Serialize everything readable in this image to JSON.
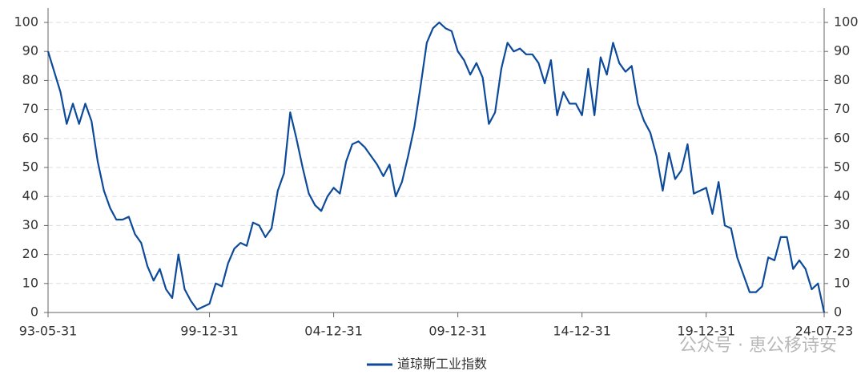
{
  "chart_data": {
    "type": "line",
    "categories": [
      "93-05-31",
      null,
      null,
      null,
      null,
      null,
      null,
      null,
      null,
      null,
      null,
      null,
      null,
      null,
      null,
      null,
      null,
      null,
      null,
      null,
      null,
      null,
      null,
      null,
      null,
      null,
      "99-12-31",
      null,
      null,
      null,
      null,
      null,
      null,
      null,
      null,
      null,
      null,
      null,
      null,
      null,
      null,
      null,
      null,
      null,
      null,
      null,
      "04-12-31",
      null,
      null,
      null,
      null,
      null,
      null,
      null,
      null,
      null,
      null,
      null,
      null,
      null,
      null,
      null,
      null,
      null,
      null,
      null,
      "09-12-31",
      null,
      null,
      null,
      null,
      null,
      null,
      null,
      null,
      null,
      null,
      null,
      null,
      null,
      null,
      null,
      null,
      null,
      null,
      null,
      "14-12-31",
      null,
      null,
      null,
      null,
      null,
      null,
      null,
      null,
      null,
      null,
      null,
      null,
      null,
      null,
      null,
      null,
      null,
      null,
      null,
      "19-12-31",
      null,
      null,
      null,
      null,
      null,
      null,
      null,
      null,
      null,
      null,
      null,
      null,
      null,
      null,
      null,
      null,
      null,
      null,
      "24-07-23"
    ],
    "series": [
      {
        "name": "道琼斯工业指数",
        "color": "#0d4a9a",
        "values": [
          90,
          83,
          76,
          65,
          72,
          65,
          72,
          66,
          52,
          42,
          36,
          32,
          32,
          33,
          27,
          24,
          16,
          11,
          15,
          8,
          5,
          20,
          8,
          4,
          1,
          2,
          3,
          10,
          9,
          17,
          22,
          24,
          23,
          31,
          30,
          26,
          29,
          42,
          48,
          69,
          60,
          50,
          41,
          37,
          35,
          40,
          43,
          41,
          52,
          58,
          59,
          57,
          54,
          51,
          47,
          51,
          40,
          45,
          54,
          64,
          78,
          93,
          98,
          100,
          98,
          97,
          90,
          87,
          82,
          86,
          81,
          65,
          69,
          84,
          93,
          90,
          91,
          89,
          89,
          86,
          79,
          87,
          68,
          76,
          72,
          72,
          68,
          84,
          68,
          88,
          82,
          93,
          86,
          83,
          85,
          72,
          66,
          62,
          54,
          42,
          55,
          46,
          49,
          58,
          41,
          42,
          43,
          34,
          45,
          30,
          29,
          19,
          13,
          7,
          7,
          9,
          19,
          18,
          26,
          26,
          15,
          18,
          15,
          8,
          10,
          0
        ]
      }
    ],
    "ylim": [
      0,
      100
    ],
    "yticks": [
      0,
      10,
      20,
      30,
      40,
      50,
      60,
      70,
      80,
      90,
      100
    ],
    "y2lim": [
      0,
      100
    ],
    "y2ticks": [
      0,
      10,
      20,
      30,
      40,
      50,
      60,
      70,
      80,
      90,
      100
    ],
    "grid": true,
    "legend": "bottom",
    "watermark": "公众号 · 恵公移诗安"
  }
}
